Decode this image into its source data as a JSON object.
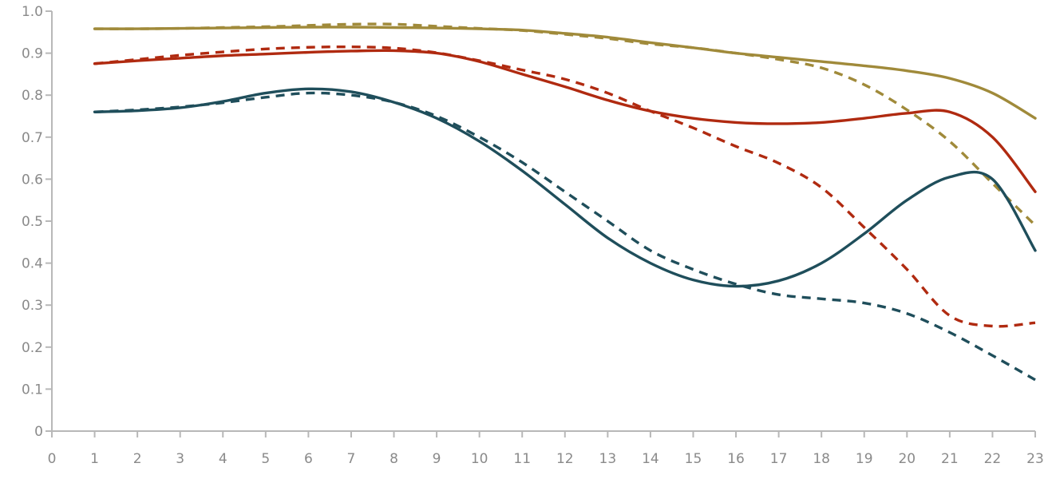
{
  "chart_data": {
    "type": "line",
    "title": "",
    "xlabel": "",
    "ylabel": "",
    "xlim": [
      0,
      23
    ],
    "ylim": [
      0,
      1.0
    ],
    "x_ticks": [
      "0",
      "1",
      "2",
      "3",
      "4",
      "5",
      "6",
      "7",
      "8",
      "9",
      "10",
      "11",
      "12",
      "13",
      "14",
      "15",
      "16",
      "17",
      "18",
      "19",
      "20",
      "21",
      "22",
      "23"
    ],
    "y_ticks": [
      "0",
      "0.1",
      "0.2",
      "0.3",
      "0.4",
      "0.5",
      "0.6",
      "0.7",
      "0.8",
      "0.9",
      "1.0"
    ],
    "grid": false,
    "legend": "none",
    "x": [
      1,
      2,
      3,
      4,
      5,
      6,
      7,
      8,
      9,
      10,
      11,
      12,
      13,
      14,
      15,
      16,
      17,
      18,
      19,
      20,
      21,
      22,
      23
    ],
    "series": [
      {
        "color": "#a08a3a",
        "style": "solid",
        "values": [
          0.958,
          0.958,
          0.959,
          0.96,
          0.961,
          0.962,
          0.962,
          0.961,
          0.96,
          0.958,
          0.955,
          0.947,
          0.938,
          0.925,
          0.913,
          0.9,
          0.89,
          0.88,
          0.87,
          0.858,
          0.84,
          0.805,
          0.745
        ]
      },
      {
        "color": "#a08a3a",
        "style": "dashed",
        "values": [
          0.958,
          0.958,
          0.959,
          0.961,
          0.963,
          0.966,
          0.969,
          0.969,
          0.964,
          0.959,
          0.954,
          0.945,
          0.935,
          0.922,
          0.913,
          0.9,
          0.885,
          0.865,
          0.825,
          0.765,
          0.69,
          0.59,
          0.49
        ]
      },
      {
        "color": "#b02a10",
        "style": "solid",
        "values": [
          0.875,
          0.882,
          0.888,
          0.894,
          0.898,
          0.902,
          0.905,
          0.906,
          0.9,
          0.88,
          0.85,
          0.82,
          0.788,
          0.762,
          0.745,
          0.735,
          0.732,
          0.735,
          0.745,
          0.757,
          0.76,
          0.7,
          0.57
        ]
      },
      {
        "color": "#b02a10",
        "style": "dashed",
        "values": [
          0.875,
          0.885,
          0.895,
          0.903,
          0.91,
          0.914,
          0.915,
          0.912,
          0.901,
          0.882,
          0.86,
          0.838,
          0.805,
          0.762,
          0.722,
          0.678,
          0.638,
          0.58,
          0.485,
          0.385,
          0.275,
          0.25,
          0.258
        ]
      },
      {
        "color": "#1f4e5b",
        "style": "solid",
        "values": [
          0.76,
          0.763,
          0.77,
          0.785,
          0.805,
          0.815,
          0.808,
          0.783,
          0.745,
          0.69,
          0.62,
          0.54,
          0.46,
          0.4,
          0.36,
          0.345,
          0.358,
          0.4,
          0.47,
          0.55,
          0.605,
          0.6,
          0.43
        ]
      },
      {
        "color": "#1f4e5b",
        "style": "dashed",
        "values": [
          0.76,
          0.765,
          0.772,
          0.782,
          0.795,
          0.805,
          0.8,
          0.783,
          0.75,
          0.7,
          0.64,
          0.57,
          0.5,
          0.43,
          0.385,
          0.35,
          0.325,
          0.315,
          0.305,
          0.28,
          0.235,
          0.18,
          0.122
        ]
      }
    ]
  }
}
